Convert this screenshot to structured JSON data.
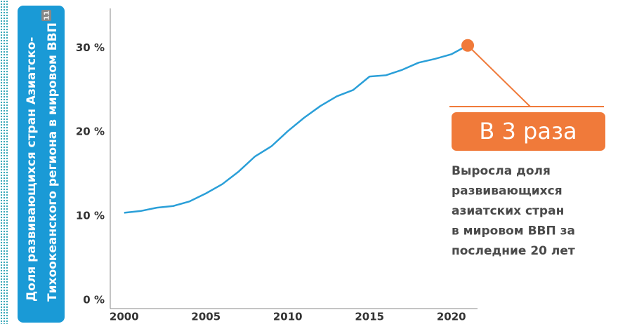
{
  "chart_data": {
    "type": "line",
    "ylabel": [
      "Доля развивающихся стран Азиатско-",
      "Тихоокеанского региона в мировом ВВП"
    ],
    "footnote": "11",
    "x": [
      2000,
      2001,
      2002,
      2003,
      2004,
      2005,
      2006,
      2007,
      2008,
      2009,
      2010,
      2011,
      2012,
      2013,
      2014,
      2015,
      2016,
      2017,
      2018,
      2019,
      2020,
      2021
    ],
    "series": [
      {
        "name": "Доля",
        "color": "#2a9fd8",
        "values": [
          10.4,
          10.6,
          11.0,
          11.2,
          11.75,
          12.7,
          13.8,
          15.3,
          17.1,
          18.3,
          20.1,
          21.7,
          23.1,
          24.25,
          25.0,
          26.6,
          26.75,
          27.4,
          28.25,
          28.7,
          29.25,
          30.3
        ]
      }
    ],
    "highlight_color": "#f07a3a",
    "xlim": [
      1999.15,
      2021.6
    ],
    "xticks": [
      2000,
      2005,
      2010,
      2015,
      2020
    ],
    "ylim": [
      -1,
      34.7
    ],
    "yticks": [
      {
        "value": 0,
        "label": "0 %"
      },
      {
        "value": 10,
        "label": "10 %"
      },
      {
        "value": 20,
        "label": "20 %"
      },
      {
        "value": 30,
        "label": "30 %"
      }
    ],
    "annotation": {
      "headline": "В 3 раза",
      "text": [
        "Выросла доля",
        "развивающихся",
        "азиатских стран",
        "в мировом ВВП за",
        "последние 20 лет"
      ]
    }
  }
}
